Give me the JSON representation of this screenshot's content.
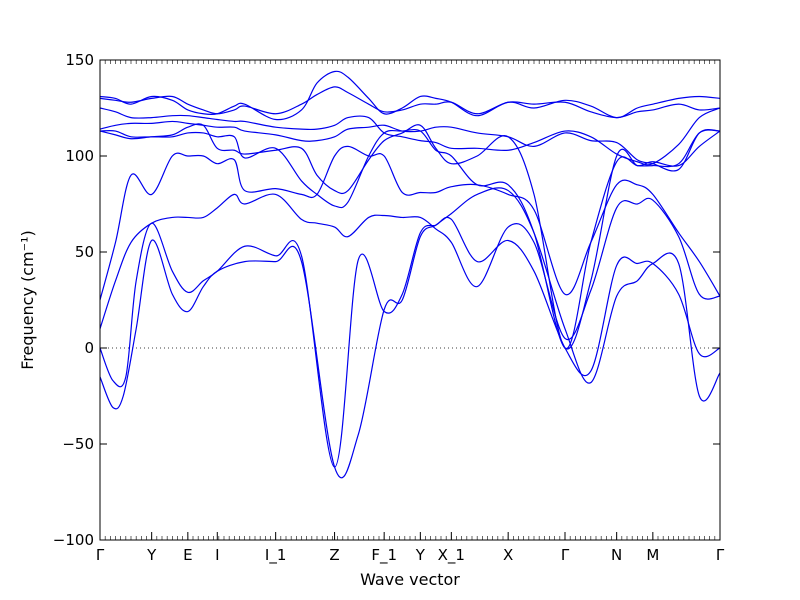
{
  "chart_data": {
    "type": "line",
    "title": "",
    "xlabel": "Wave vector",
    "ylabel": "Frequency (cm⁻¹)",
    "ylim": [
      -100,
      150
    ],
    "yticks": [
      -100,
      -50,
      0,
      50,
      100,
      150
    ],
    "xlim": [
      0,
      12
    ],
    "xticks": [
      {
        "label": "Γ",
        "x": 0
      },
      {
        "label": "Y",
        "x": 1
      },
      {
        "label": "E",
        "x": 1.7
      },
      {
        "label": "I",
        "x": 2.27
      },
      {
        "label": "I_1",
        "x": 3.4
      },
      {
        "label": "Z",
        "x": 4.54
      },
      {
        "label": "F_1",
        "x": 5.5
      },
      {
        "label": "Y",
        "x": 6.2
      },
      {
        "label": "X_1",
        "x": 6.8
      },
      {
        "label": "X",
        "x": 7.9
      },
      {
        "label": "Γ",
        "x": 9.0
      },
      {
        "label": "N",
        "x": 10.0
      },
      {
        "label": "M",
        "x": 10.7
      },
      {
        "label": "Γ",
        "x": 12
      }
    ],
    "zero_line": true,
    "color": "#0000ee",
    "series": [
      {
        "x": [
          0,
          0.25,
          0.45,
          0.7,
          1.0,
          1.4,
          1.7,
          2.0,
          2.27,
          2.8,
          3.4,
          3.9,
          4.54,
          5.0,
          5.5,
          5.85,
          6.2,
          6.5,
          6.8,
          7.3,
          7.9,
          8.4,
          9.0,
          9.5,
          10.0,
          10.4,
          10.7,
          11.2,
          11.6,
          12
        ],
        "y": [
          -15,
          -31,
          -25,
          10,
          56,
          28,
          19,
          32,
          40,
          45,
          45,
          45,
          -62,
          -45,
          20,
          25,
          58,
          64,
          70,
          80,
          82,
          60,
          10,
          -18,
          27,
          35,
          44,
          44,
          -25,
          -13
        ]
      },
      {
        "x": [
          0,
          0.25,
          0.5,
          0.7,
          1.0,
          1.4,
          1.7,
          2.0,
          2.27,
          2.8,
          3.4,
          3.9,
          4.54,
          5.0,
          5.5,
          5.85,
          6.2,
          6.5,
          6.8,
          7.3,
          7.9,
          8.4,
          9.0,
          9.5,
          10.0,
          10.4,
          10.7,
          11.2,
          11.6,
          12
        ],
        "y": [
          0,
          -17,
          -15,
          35,
          65,
          40,
          29,
          35,
          40,
          53,
          48,
          48,
          -62,
          46,
          19,
          28,
          60,
          64,
          67,
          45,
          56,
          40,
          0,
          -12,
          43,
          44,
          44,
          28,
          -3,
          0
        ]
      },
      {
        "x": [
          0,
          0.3,
          0.6,
          1.0,
          1.4,
          1.7,
          2.0,
          2.27,
          2.6,
          2.8,
          3.4,
          3.9,
          4.2,
          4.54,
          4.8,
          5.2,
          5.5,
          5.85,
          6.2,
          6.5,
          6.8,
          7.3,
          7.9,
          8.4,
          9.0,
          9.5,
          10.0,
          10.4,
          10.7,
          11.2,
          11.6,
          12
        ],
        "y": [
          10,
          35,
          55,
          65,
          68,
          68,
          68,
          73,
          80,
          75,
          80,
          67,
          65,
          63,
          58,
          68,
          69,
          68,
          68,
          62,
          55,
          32,
          63,
          55,
          5,
          30,
          73,
          75,
          77,
          58,
          28,
          27
        ]
      },
      {
        "x": [
          0,
          0.3,
          0.6,
          1.0,
          1.4,
          1.7,
          2.0,
          2.27,
          2.6,
          2.8,
          3.4,
          3.9,
          4.2,
          4.54,
          4.8,
          5.2,
          5.5,
          5.85,
          6.2,
          6.5,
          6.8,
          7.3,
          7.9,
          8.4,
          9.0,
          9.5,
          10.0,
          10.4,
          10.7,
          11.2,
          11.6,
          12
        ],
        "y": [
          25,
          55,
          90,
          80,
          100,
          100,
          100,
          96,
          98,
          82,
          83,
          80,
          80,
          100,
          105,
          100,
          100,
          81,
          81,
          81,
          84,
          85,
          80,
          72,
          28,
          55,
          85,
          85,
          80,
          60,
          45,
          27
        ]
      },
      {
        "x": [
          0,
          0.3,
          0.6,
          1.0,
          1.4,
          1.7,
          2.0,
          2.27,
          2.6,
          2.8,
          3.4,
          3.9,
          4.2,
          4.54,
          4.8,
          5.2,
          5.5,
          5.85,
          6.2,
          6.5,
          6.8,
          7.3,
          7.9,
          8.4,
          9.0,
          9.5,
          10.0,
          10.4,
          10.7,
          11.2,
          11.6,
          12
        ],
        "y": [
          113,
          113,
          110,
          110,
          110,
          112,
          112,
          110,
          110,
          99,
          104,
          87,
          80,
          74,
          76,
          100,
          112,
          113,
          113,
          103,
          100,
          85,
          85,
          60,
          0,
          35,
          100,
          95,
          97,
          95,
          105,
          113
        ]
      },
      {
        "x": [
          0,
          0.3,
          0.6,
          1.0,
          1.4,
          1.7,
          2.0,
          2.27,
          2.6,
          2.8,
          3.4,
          3.9,
          4.2,
          4.54,
          4.8,
          5.2,
          5.5,
          5.85,
          6.2,
          6.5,
          6.8,
          7.3,
          7.9,
          8.4,
          9.0,
          9.5,
          10.0,
          10.4,
          10.7,
          11.2,
          11.6,
          12
        ],
        "y": [
          113,
          111,
          109,
          110,
          111,
          115,
          116,
          104,
          103,
          101,
          103,
          104,
          90,
          82,
          82,
          98,
          108,
          112,
          116,
          104,
          96,
          100,
          110,
          80,
          0,
          55,
          97,
          95,
          95,
          96,
          112,
          113
        ]
      },
      {
        "x": [
          0,
          0.3,
          0.6,
          1.0,
          1.4,
          1.7,
          2.0,
          2.27,
          2.6,
          2.8,
          3.4,
          3.9,
          4.2,
          4.54,
          4.8,
          5.2,
          5.5,
          5.85,
          6.2,
          6.5,
          6.8,
          7.3,
          7.9,
          8.4,
          9.0,
          9.5,
          10.0,
          10.4,
          10.7,
          11.2,
          11.6,
          12
        ],
        "y": [
          114,
          116,
          117,
          117,
          118,
          117,
          116,
          115,
          115,
          113,
          111,
          108,
          108,
          110,
          114,
          115,
          116,
          113,
          113,
          115,
          115,
          112,
          110,
          105,
          112,
          108,
          107,
          98,
          96,
          93,
          112,
          113
        ]
      },
      {
        "x": [
          0,
          0.3,
          0.6,
          1.0,
          1.4,
          1.7,
          2.0,
          2.27,
          2.6,
          2.8,
          3.4,
          3.9,
          4.2,
          4.54,
          4.8,
          5.2,
          5.5,
          5.85,
          6.2,
          6.5,
          6.8,
          7.3,
          7.9,
          8.4,
          9.0,
          9.5,
          10.0,
          10.4,
          10.7,
          11.2,
          11.6,
          12
        ],
        "y": [
          125,
          123,
          120,
          120,
          121,
          121,
          120,
          119,
          118,
          118,
          115,
          114,
          114,
          116,
          120,
          120,
          112,
          110,
          108,
          107,
          104,
          104,
          103,
          107,
          113,
          110,
          101,
          97,
          96,
          106,
          120,
          125
        ]
      },
      {
        "x": [
          0,
          0.3,
          0.6,
          1.0,
          1.4,
          1.7,
          2.0,
          2.27,
          2.6,
          2.8,
          3.4,
          3.9,
          4.2,
          4.54,
          4.8,
          5.2,
          5.5,
          5.85,
          6.2,
          6.5,
          6.8,
          7.3,
          7.9,
          8.4,
          9.0,
          9.5,
          10.0,
          10.4,
          10.7,
          11.2,
          11.6,
          12
        ],
        "y": [
          130,
          129,
          128,
          130,
          131,
          127,
          124,
          122,
          124,
          126,
          122,
          127,
          132,
          136,
          133,
          127,
          123,
          124,
          127,
          127,
          128,
          122,
          128,
          127,
          128,
          123,
          120,
          123,
          124,
          127,
          124,
          125
        ]
      },
      {
        "x": [
          0,
          0.3,
          0.6,
          1.0,
          1.4,
          1.7,
          2.0,
          2.27,
          2.6,
          2.8,
          3.4,
          3.9,
          4.2,
          4.54,
          4.8,
          5.2,
          5.5,
          5.85,
          6.2,
          6.5,
          6.8,
          7.3,
          7.9,
          8.4,
          9.0,
          9.5,
          10.0,
          10.4,
          10.7,
          11.2,
          11.6,
          12
        ],
        "y": [
          131,
          130,
          127,
          131,
          129,
          124,
          122,
          122,
          126,
          127,
          119,
          124,
          138,
          144,
          141,
          130,
          122,
          125,
          131,
          130,
          128,
          121,
          128,
          125,
          129,
          126,
          120,
          125,
          127,
          130,
          131,
          130
        ]
      }
    ]
  }
}
